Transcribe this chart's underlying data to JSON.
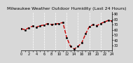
{
  "title": "Milwaukee Weather Outdoor Humidity (Last 24 Hours)",
  "ylim": [
    20,
    95
  ],
  "yticks": [
    30,
    40,
    50,
    60,
    70,
    80,
    90
  ],
  "background_color": "#d8d8d8",
  "plot_bg_color": "#d8d8d8",
  "line_color": "#cc0000",
  "marker_color": "#000000",
  "grid_color": "#ffffff",
  "hours": [
    0,
    1,
    2,
    3,
    4,
    5,
    6,
    7,
    8,
    9,
    10,
    11,
    12,
    13,
    14,
    15,
    16,
    17,
    18,
    19,
    20,
    21,
    22,
    23,
    24
  ],
  "humidity": [
    62,
    60,
    64,
    67,
    65,
    68,
    69,
    72,
    70,
    71,
    72,
    74,
    45,
    28,
    23,
    28,
    35,
    52,
    66,
    70,
    68,
    72,
    75,
    78,
    77
  ],
  "vlines": [
    3,
    6,
    9,
    12,
    15,
    18,
    21
  ],
  "title_fontsize": 4.5,
  "tick_fontsize": 3.5,
  "line_width": 1.0,
  "marker_size": 1.8,
  "xlim": [
    0,
    24
  ],
  "xticks": [
    0,
    1,
    2,
    3,
    4,
    5,
    6,
    7,
    8,
    9,
    10,
    11,
    12,
    13,
    14,
    15,
    16,
    17,
    18,
    19,
    20,
    21,
    22,
    23,
    24
  ]
}
